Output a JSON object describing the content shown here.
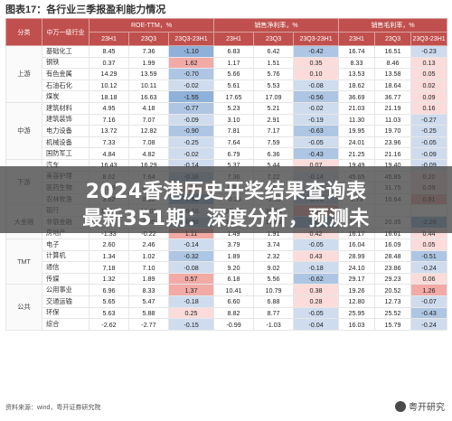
{
  "title": "图表17：各行业三季报盈利能力情况",
  "headers": {
    "row1": [
      "分类",
      "中万一级行业",
      "ROE-TTM，%",
      "销售净利率，%",
      "销售毛利率，%"
    ],
    "row2": [
      "23H1",
      "23Q3",
      "23Q3-23H1",
      "23H1",
      "23Q3",
      "23Q3-23H1",
      "23H1",
      "23Q3",
      "23Q3-23H1"
    ]
  },
  "groups": [
    {
      "name": "上游",
      "rows": [
        [
          "基础化工",
          "8.45",
          "7.36",
          "-1.10",
          "6.83",
          "6.42",
          "-0.42",
          "16.74",
          "16.51",
          "-0.23"
        ],
        [
          "钢铁",
          "0.37",
          "1.99",
          "1.62",
          "1.17",
          "1.51",
          "0.35",
          "8.33",
          "8.46",
          "0.13"
        ],
        [
          "有色金属",
          "14.29",
          "13.59",
          "-0.70",
          "5.66",
          "5.76",
          "0.10",
          "13.53",
          "13.58",
          "0.05"
        ],
        [
          "石油石化",
          "10.12",
          "10.11",
          "-0.02",
          "5.61",
          "5.53",
          "-0.08",
          "18.62",
          "18.64",
          "0.02"
        ],
        [
          "煤炭",
          "18.18",
          "16.63",
          "-1.55",
          "17.65",
          "17.09",
          "-0.56",
          "36.69",
          "36.77",
          "0.09"
        ]
      ]
    },
    {
      "name": "中游",
      "rows": [
        [
          "建筑材料",
          "4.95",
          "4.18",
          "-0.77",
          "5.23",
          "5.21",
          "-0.02",
          "21.03",
          "21.19",
          "0.16"
        ],
        [
          "建筑装饰",
          "7.16",
          "7.07",
          "-0.09",
          "3.10",
          "2.91",
          "-0.19",
          "11.30",
          "11.03",
          "-0.27"
        ],
        [
          "电力设备",
          "13.72",
          "12.82",
          "-0.90",
          "7.81",
          "7.17",
          "-0.63",
          "19.95",
          "19.70",
          "-0.25"
        ],
        [
          "机械设备",
          "7.33",
          "7.08",
          "-0.25",
          "7.64",
          "7.59",
          "-0.05",
          "24.01",
          "23.96",
          "-0.05"
        ],
        [
          "国防军工",
          "4.84",
          "4.82",
          "-0.02",
          "6.79",
          "6.36",
          "-0.43",
          "21.25",
          "21.16",
          "-0.09"
        ]
      ]
    },
    {
      "name": "下游",
      "rows": [
        [
          "汽车",
          "16.43",
          "16.29",
          "-0.14",
          "5.37",
          "5.44",
          "0.07",
          "19.49",
          "19.40",
          "-0.09"
        ],
        [
          "美容护理",
          "8.02",
          "7.64",
          "-0.38",
          "7.36",
          "7.22",
          "-0.14",
          "45.65",
          "45.85",
          "0.20"
        ],
        [
          "医药生物",
          "7.59",
          "8.00",
          "0.41",
          "9.80",
          "9.58",
          "-0.22",
          "31.66",
          "31.75",
          "0.09"
        ],
        [
          "农林牧渔",
          "3.62",
          "0.80",
          "-2.82",
          "-0.29",
          "-1.05",
          "-0.76",
          "9.73",
          "10.64",
          "0.91"
        ]
      ]
    },
    {
      "name": "大金融",
      "rows": [
        [
          "银行",
          "10.17",
          "10.01",
          "-0.16",
          "37.35",
          "38.23",
          "0.88",
          "",
          "",
          ""
        ],
        [
          "非银金融",
          "7.30",
          "7.00",
          "-0.30",
          "13.97",
          "12.63",
          "-1.34",
          "22.61",
          "20.35",
          "-2.26"
        ],
        [
          "房地产",
          "-1.33",
          "-0.22",
          "1.11",
          "1.49",
          "1.91",
          "0.42",
          "16.17",
          "16.61",
          "0.44"
        ]
      ]
    },
    {
      "name": "TMT",
      "rows": [
        [
          "电子",
          "2.60",
          "2.46",
          "-0.14",
          "3.79",
          "3.74",
          "-0.05",
          "16.04",
          "16.09",
          "0.05"
        ],
        [
          "计算机",
          "1.34",
          "1.02",
          "-0.32",
          "1.89",
          "2.32",
          "0.43",
          "28.99",
          "28.48",
          "-0.51"
        ],
        [
          "通信",
          "7.18",
          "7.10",
          "-0.08",
          "9.20",
          "9.02",
          "-0.18",
          "24.10",
          "23.86",
          "-0.24"
        ],
        [
          "传媒",
          "1.32",
          "1.89",
          "0.57",
          "6.18",
          "5.56",
          "-0.62",
          "29.17",
          "29.23",
          "0.06"
        ]
      ]
    },
    {
      "name": "公共",
      "rows": [
        [
          "公用事业",
          "6.96",
          "8.33",
          "1.37",
          "10.41",
          "10.79",
          "0.38",
          "19.26",
          "20.52",
          "1.26"
        ],
        [
          "交通运输",
          "5.65",
          "5.47",
          "-0.18",
          "6.60",
          "6.88",
          "0.28",
          "12.80",
          "12.73",
          "-0.07"
        ],
        [
          "环保",
          "5.63",
          "5.88",
          "0.25",
          "8.82",
          "8.77",
          "-0.05",
          "25.95",
          "25.52",
          "-0.43"
        ],
        [
          "综合",
          "-2.62",
          "-2.77",
          "-0.15",
          "-0.99",
          "-1.03",
          "-0.04",
          "16.03",
          "15.79",
          "-0.24"
        ]
      ]
    }
  ],
  "banner": {
    "line1": "2024香港历史开奖结果查询表",
    "line2": "最新351期：深度分析，预测未"
  },
  "source": "资料来源：wind，粤开证券研究院",
  "watermark": "粤开研究"
}
